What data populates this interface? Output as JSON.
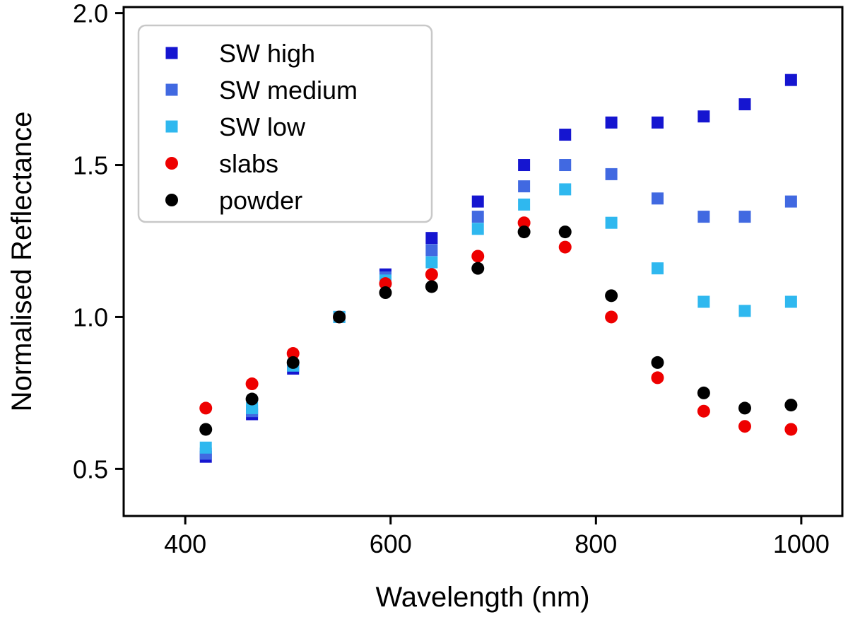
{
  "figure": {
    "background": "#ffffff",
    "frame_color": "#000000"
  },
  "legend": {
    "border_color": "#c8c8c8",
    "background": "#ffffff"
  },
  "chart_data": {
    "type": "scatter",
    "title": "",
    "xlabel": "Wavelength (nm)",
    "ylabel": "Normalised Reflectance",
    "xlim": [
      340,
      1040
    ],
    "ylim": [
      0.345,
      2.02
    ],
    "x_ticks": [
      400,
      600,
      800,
      1000
    ],
    "x_tick_labels": [
      "400",
      "600",
      "800",
      "1000"
    ],
    "y_ticks": [
      0.5,
      1.0,
      1.5,
      2.0
    ],
    "y_tick_labels": [
      "0.5",
      "1.0",
      "1.5",
      "2.0"
    ],
    "grid": false,
    "legend_position": "upper-left",
    "x": [
      420,
      465,
      505,
      550,
      595,
      640,
      685,
      730,
      770,
      815,
      860,
      905,
      945,
      990
    ],
    "series": [
      {
        "name": "SW high",
        "marker": "square",
        "color": "#1515d0",
        "values": [
          0.54,
          0.68,
          0.83,
          1.0,
          1.14,
          1.26,
          1.38,
          1.5,
          1.6,
          1.64,
          1.64,
          1.66,
          1.7,
          1.78
        ]
      },
      {
        "name": "SW medium",
        "marker": "square",
        "color": "#4169e1",
        "values": [
          0.55,
          0.69,
          0.84,
          1.0,
          1.13,
          1.22,
          1.33,
          1.43,
          1.5,
          1.47,
          1.39,
          1.33,
          1.33,
          1.38
        ]
      },
      {
        "name": "SW low",
        "marker": "square",
        "color": "#2fb8ef",
        "values": [
          0.57,
          0.7,
          0.84,
          1.0,
          1.12,
          1.18,
          1.29,
          1.37,
          1.42,
          1.31,
          1.16,
          1.05,
          1.02,
          1.05
        ]
      },
      {
        "name": "slabs",
        "marker": "circle",
        "color": "#ee0000",
        "values": [
          0.7,
          0.78,
          0.88,
          1.0,
          1.11,
          1.14,
          1.2,
          1.31,
          1.23,
          1.0,
          0.8,
          0.69,
          0.64,
          0.63
        ]
      },
      {
        "name": "powder",
        "marker": "circle",
        "color": "#000000",
        "values": [
          0.63,
          0.73,
          0.85,
          1.0,
          1.08,
          1.1,
          1.16,
          1.28,
          1.28,
          1.07,
          0.85,
          0.75,
          0.7,
          0.71
        ]
      }
    ]
  }
}
